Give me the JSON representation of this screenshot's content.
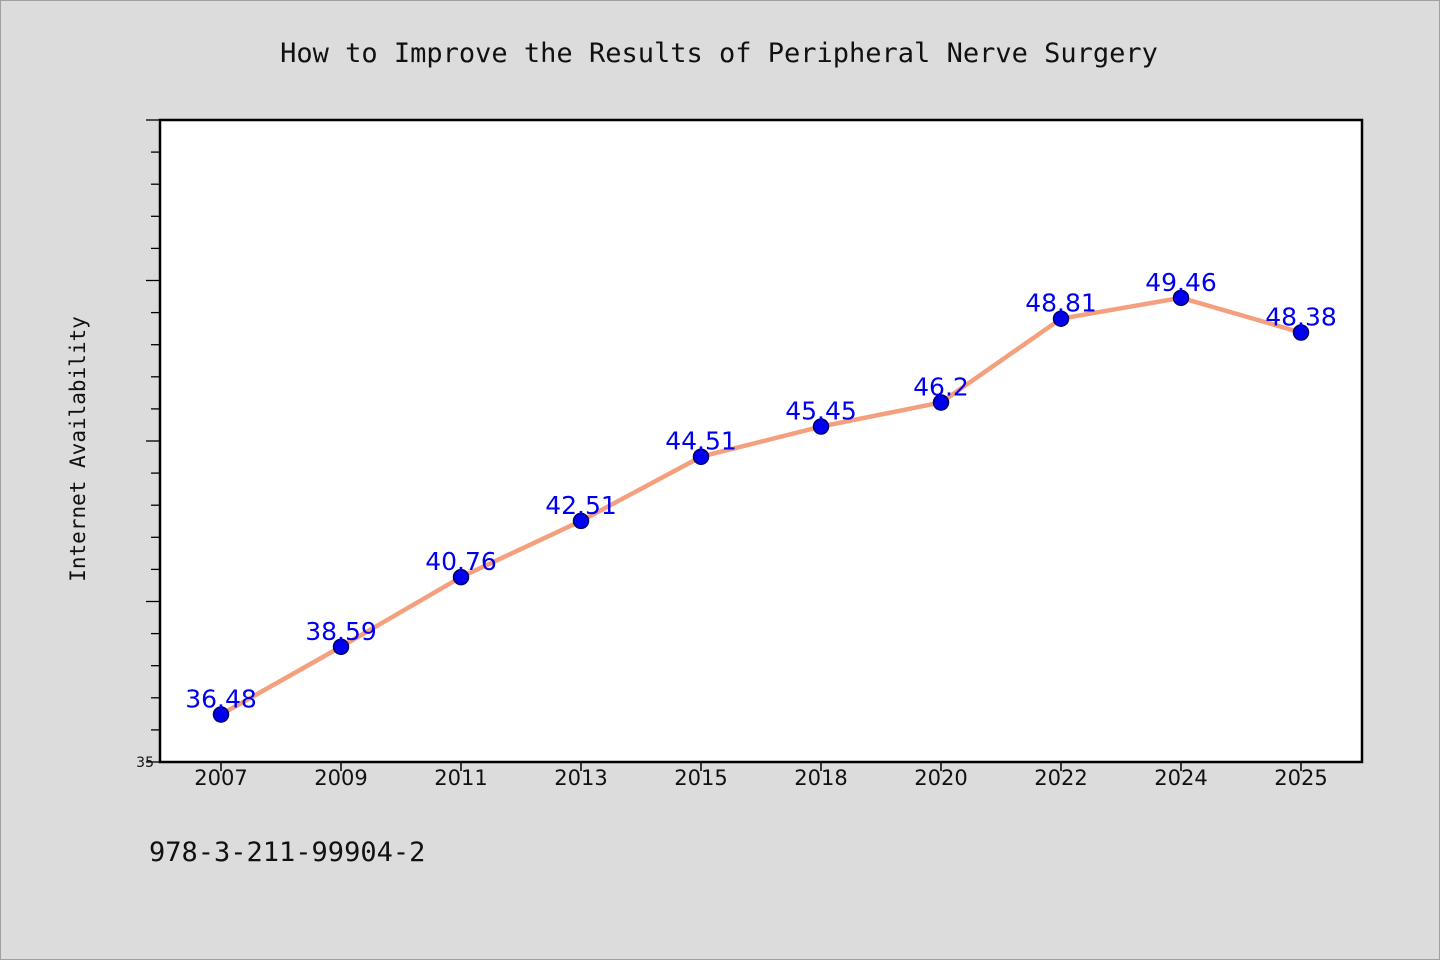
{
  "colors": {
    "background": "#dcdcdc",
    "plot_background": "#ffffff",
    "line": "#f4a07e",
    "marker_fill": "#0000ee",
    "marker_stroke": "#000066",
    "label": "#0000ee",
    "axis": "#000000"
  },
  "footer": {
    "code": "978-3-211-99904-2"
  },
  "chart_data": {
    "type": "line",
    "title": "How to Improve the Results of Peripheral Nerve Surgery",
    "xlabel": "",
    "ylabel": "Internet Availability",
    "categories": [
      "2007",
      "2009",
      "2011",
      "2013",
      "2015",
      "2018",
      "2020",
      "2022",
      "2024",
      "2025"
    ],
    "values": [
      36.48,
      38.59,
      40.76,
      42.51,
      44.51,
      45.45,
      46.2,
      48.81,
      49.46,
      48.38
    ],
    "data_labels": [
      "36.48",
      "38.59",
      "40.76",
      "42.51",
      "44.51",
      "45.45",
      "46.2",
      "48.81",
      "49.46",
      "48.38"
    ],
    "ylim": [
      35,
      55
    ],
    "ytick_labels": [
      "35"
    ],
    "grid": false,
    "legend": "none"
  }
}
